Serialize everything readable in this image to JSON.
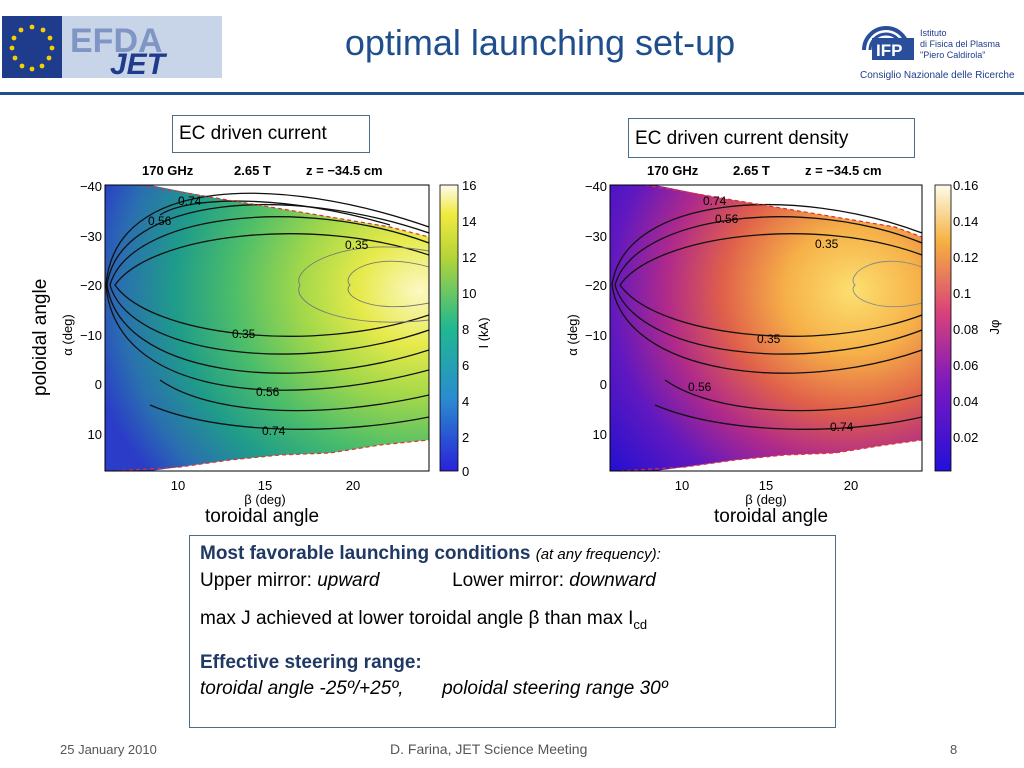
{
  "title": "optimal launching set-up",
  "logo_left": {
    "line1": "EFDA",
    "line2": "JET"
  },
  "logo_right": {
    "initials": "IFP",
    "lines": [
      "Istituto",
      "di Fisica del Plasma",
      "\"Piero Caldirola\""
    ],
    "org": "Consiglio Nazionale delle Ricerche"
  },
  "captions": {
    "left": "EC driven current",
    "right": "EC driven current density",
    "poloidal": "poloidal angle",
    "toroidal_left": "toroidal angle",
    "toroidal_right": "toroidal angle"
  },
  "plots": {
    "header": {
      "freq": "170 GHz",
      "field": "2.65 T",
      "z": "z = −34.5 cm"
    },
    "xlabel": "β (deg)",
    "ylabel": "α (deg)",
    "left_cbar_label": "I (kA)",
    "right_cbar_label": "Jφ",
    "contour_labels": [
      "0.74",
      "0.56",
      "0.35",
      "0.35",
      "0.56",
      "0.74"
    ]
  },
  "chart_data": [
    {
      "type": "heatmap",
      "title": "170 GHz 2.65 T z = −34.5 cm",
      "xlabel": "β (deg)",
      "ylabel": "α (deg)",
      "x_ticks": [
        10,
        15,
        20
      ],
      "y_ticks": [
        -40,
        -30,
        -20,
        -10,
        0,
        10
      ],
      "colorbar_label": "I (kA)",
      "colorbar_ticks": [
        0,
        2,
        4,
        6,
        8,
        10,
        12,
        14,
        16
      ],
      "colormap": "viridis",
      "contours": [
        0.74,
        0.56,
        0.35,
        0.35,
        0.56,
        0.74
      ]
    },
    {
      "type": "heatmap",
      "title": "170 GHz 2.65 T z = −34.5 cm",
      "xlabel": "β (deg)",
      "ylabel": "α (deg)",
      "x_ticks": [
        10,
        15,
        20
      ],
      "y_ticks": [
        -40,
        -30,
        -20,
        -10,
        0,
        10
      ],
      "colorbar_label": "Jφ",
      "colorbar_ticks": [
        0.02,
        0.04,
        0.06,
        0.08,
        0.1,
        0.12,
        0.14,
        0.16
      ],
      "colormap": "plasma",
      "contours": [
        0.74,
        0.56,
        0.35,
        0.35,
        0.56,
        0.74
      ]
    }
  ],
  "summary": {
    "heading": "Most favorable launching conditions",
    "heading_note": "(at any frequency):",
    "upper_label": "Upper mirror:",
    "upper_value": "upward",
    "lower_label": "Lower mirror:",
    "lower_value": "downward",
    "maxj_text": "max J achieved at lower toroidal angle β than max I",
    "maxj_sub": "cd",
    "steer_heading": "Effective steering range:",
    "steer_toroidal": "toroidal angle -25º/+25º,",
    "steer_poloidal": "poloidal steering range 30º"
  },
  "footer": {
    "date": "25 January 2010",
    "center": "D. Farina, JET Science Meeting",
    "page": "8"
  }
}
